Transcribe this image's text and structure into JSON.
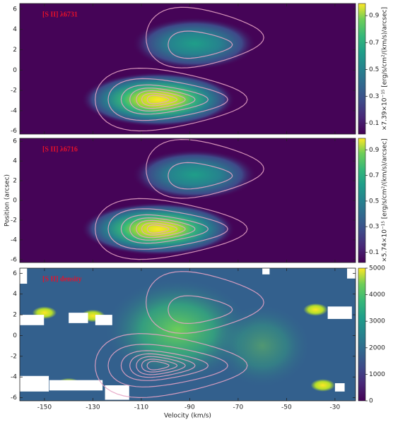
{
  "chart_data": [
    {
      "type": "heatmap",
      "title": "[S II] λ6731",
      "xlim": [
        -160.2,
        -21.5
      ],
      "xticks": [
        -150,
        -130,
        -110,
        -90,
        -70,
        -50,
        -30
      ],
      "ylim": [
        -6.3,
        6.55
      ],
      "yticks": [
        -6,
        -4,
        -2,
        0,
        2,
        4,
        6
      ],
      "clim": [
        0.02,
        0.99
      ],
      "cticks": [
        0.1,
        0.3,
        0.5,
        0.7,
        0.9
      ],
      "colorbar_label": "×7.39×10⁻¹⁵ [erg/s/cm²/(km/s)/arcsec]"
    },
    {
      "type": "heatmap",
      "title": "[S II] λ6716",
      "ylabel": "Position (arcsec)",
      "xlim": [
        -160.2,
        -21.5
      ],
      "xticks": [
        -150,
        -130,
        -110,
        -90,
        -70,
        -50,
        -30
      ],
      "ylim": [
        -6.3,
        6.3
      ],
      "yticks": [
        -6,
        -4,
        -2,
        0,
        2,
        4,
        6
      ],
      "clim": [
        0.02,
        0.99
      ],
      "cticks": [
        0.1,
        0.3,
        0.5,
        0.7,
        0.9
      ],
      "colorbar_label": "×5.74×10⁻¹⁵ [erg/s/cm²/(km/s)/arcsec]"
    },
    {
      "type": "heatmap",
      "title": "[S II] density",
      "xlabel": "Velocity (km/s)",
      "xlim": [
        -160.2,
        -21.5
      ],
      "xticks": [
        -150,
        -130,
        -110,
        -90,
        -70,
        -50,
        -30
      ],
      "ylim": [
        -6.3,
        6.5
      ],
      "yticks": [
        -6,
        -4,
        -2,
        0,
        2,
        4,
        6
      ],
      "clim": [
        0,
        5000
      ],
      "cticks": [
        0,
        1000,
        2000,
        3000,
        4000,
        5000
      ]
    }
  ]
}
